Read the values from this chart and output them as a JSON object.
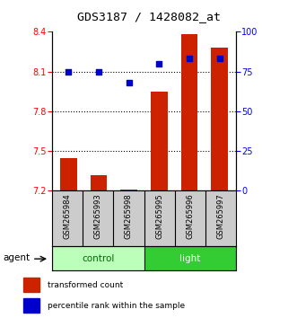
{
  "title": "GDS3187 / 1428082_at",
  "samples": [
    "GSM265984",
    "GSM265993",
    "GSM265998",
    "GSM265995",
    "GSM265996",
    "GSM265997"
  ],
  "groups": [
    "control",
    "control",
    "control",
    "light",
    "light",
    "light"
  ],
  "bar_values": [
    7.45,
    7.32,
    7.21,
    7.95,
    8.38,
    8.28
  ],
  "bar_bottom": 7.2,
  "percentile_values": [
    75,
    75,
    68,
    80,
    83,
    83
  ],
  "ylim_left": [
    7.2,
    8.4
  ],
  "ylim_right": [
    0,
    100
  ],
  "yticks_left": [
    7.2,
    7.5,
    7.8,
    8.1,
    8.4
  ],
  "yticks_right": [
    0,
    25,
    50,
    75,
    100
  ],
  "bar_color": "#cc2200",
  "dot_color": "#0000cc",
  "control_color": "#bbffbb",
  "light_color": "#33cc33",
  "group_label_color_control": "#006600",
  "grid_lines": [
    8.1,
    7.8,
    7.5
  ],
  "legend_bar_label": "transformed count",
  "legend_dot_label": "percentile rank within the sample",
  "agent_label": "agent"
}
